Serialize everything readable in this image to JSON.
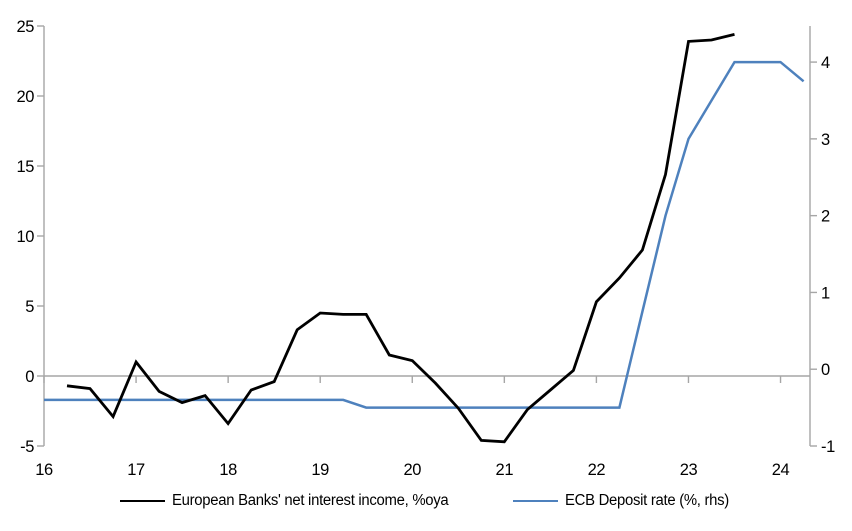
{
  "chart_data": {
    "type": "line",
    "title": "",
    "grid": "off",
    "legend_position": "bottom",
    "x_axis": {
      "range": [
        16,
        24.32
      ],
      "ticks": [
        16,
        17,
        18,
        19,
        20,
        21,
        22,
        23,
        24
      ]
    },
    "left_axis": {
      "range": [
        -5,
        25
      ],
      "ticks": [
        25,
        20,
        15,
        10,
        5,
        0,
        -5
      ]
    },
    "right_axis": {
      "range": [
        -1,
        4.47
      ],
      "ticks": [
        4,
        3,
        2,
        1,
        0,
        -1
      ]
    },
    "zero_line": true,
    "series": [
      {
        "name": "European Banks' net interest income, %oya",
        "axis": "left",
        "color": "#000000",
        "stroke_width": 2.8,
        "x": [
          16.25,
          16.5,
          16.75,
          17.0,
          17.25,
          17.5,
          17.75,
          18.0,
          18.25,
          18.5,
          18.75,
          19.0,
          19.25,
          19.5,
          19.75,
          20.0,
          20.25,
          20.5,
          20.75,
          21.0,
          21.25,
          21.5,
          21.75,
          22.0,
          22.25,
          22.5,
          22.75,
          23.0,
          23.25,
          23.5
        ],
        "values": [
          -0.7,
          -0.9,
          -2.9,
          1.0,
          -1.1,
          -1.9,
          -1.4,
          -3.4,
          -1.0,
          -0.4,
          3.3,
          4.5,
          4.4,
          4.4,
          1.5,
          1.1,
          -0.5,
          -2.3,
          -4.6,
          -4.7,
          -2.4,
          -1.0,
          0.4,
          5.3,
          7.0,
          9.0,
          14.4,
          23.9,
          24.0,
          24.4
        ]
      },
      {
        "name": "ECB Deposit rate (%, rhs)",
        "axis": "right",
        "color": "#4e81bd",
        "stroke_width": 2.5,
        "x": [
          16.0,
          16.25,
          16.5,
          16.75,
          17.0,
          17.25,
          17.5,
          17.75,
          18.0,
          18.25,
          18.5,
          18.75,
          19.0,
          19.25,
          19.5,
          19.75,
          20.0,
          20.25,
          20.5,
          20.75,
          21.0,
          21.25,
          21.5,
          21.75,
          22.0,
          22.25,
          22.5,
          22.75,
          23.0,
          23.25,
          23.5,
          23.75,
          24.0,
          24.25
        ],
        "values": [
          -0.4,
          -0.4,
          -0.4,
          -0.4,
          -0.4,
          -0.4,
          -0.4,
          -0.4,
          -0.4,
          -0.4,
          -0.4,
          -0.4,
          -0.4,
          -0.4,
          -0.5,
          -0.5,
          -0.5,
          -0.5,
          -0.5,
          -0.5,
          -0.5,
          -0.5,
          -0.5,
          -0.5,
          -0.5,
          -0.5,
          0.75,
          2.0,
          3.0,
          3.5,
          4.0,
          4.0,
          4.0,
          3.75
        ]
      }
    ]
  },
  "legend": {
    "entry1": "European Banks' net interest income, %oya",
    "entry2": "ECB Deposit rate (%, rhs)"
  },
  "colors": {
    "nii_line": "#000000",
    "ecb_line": "#4e81bd",
    "axis": "#a6a6a6",
    "background": "#ffffff"
  }
}
